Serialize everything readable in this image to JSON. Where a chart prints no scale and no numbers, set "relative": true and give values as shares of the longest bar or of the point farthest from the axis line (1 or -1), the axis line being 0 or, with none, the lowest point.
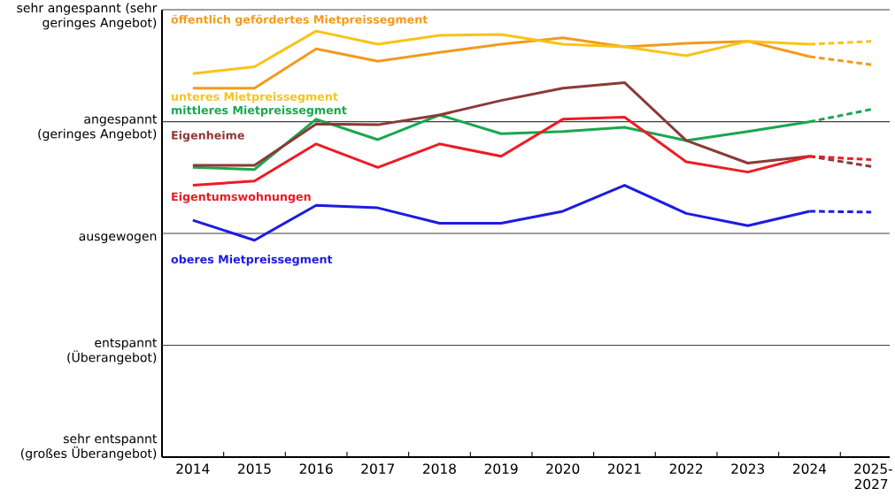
{
  "chart_data": {
    "type": "line",
    "relative": true,
    "categories": [
      "2014",
      "2015",
      "2016",
      "2017",
      "2018",
      "2019",
      "2020",
      "2021",
      "2022",
      "2023",
      "2024",
      "2025-2027"
    ],
    "annotations": [
      "sehr angespannt (sehr geringes Angebot)",
      "angespannt (geringes Angebot)",
      "ausgewogen",
      "entspannt (Überangebot)",
      "sehr entspannt (großes Überangebot)"
    ],
    "grid": "y",
    "legend": false,
    "marker": "none",
    "line_style": "solid",
    "series": [
      {
        "name": "öffentlich gefördertes Mietpreissegment",
        "color": "#f39a1e",
        "values": [
          0.866,
          0.866,
          0.958,
          0.929,
          0.95,
          0.969,
          0.984,
          0.963,
          0.971,
          0.976,
          0.94,
          null
        ]
      },
      {
        "name": "unteres Mietpreissegment",
        "color": "#f7c417",
        "values": [
          0.9,
          0.916,
          1,
          0.969,
          0.99,
          0.992,
          0.969,
          0.963,
          0.942,
          0.976,
          0.969,
          null
        ]
      },
      {
        "name": "mittleres Mietpreissegment",
        "color": "#1aa64e",
        "values": [
          0.68,
          0.675,
          0.793,
          0.745,
          0.803,
          0.759,
          0.764,
          0.774,
          0.743,
          0.764,
          0.787,
          null
        ]
      },
      {
        "name": "Eigenheime",
        "color": "#8b3a36",
        "values": [
          0.685,
          0.685,
          0.782,
          0.78,
          0.803,
          0.837,
          0.866,
          0.879,
          0.743,
          0.69,
          0.706,
          null
        ]
      },
      {
        "name": "Eigentumswohnungen",
        "color": "#ec1c24",
        "values": [
          0.638,
          0.648,
          0.735,
          0.68,
          0.735,
          0.706,
          0.793,
          0.798,
          0.693,
          0.669,
          0.706,
          null
        ]
      },
      {
        "name": "oberes Mietpreissegment",
        "color": "#1c1ce0",
        "values": [
          0.556,
          0.509,
          0.591,
          0.585,
          0.549,
          0.549,
          0.577,
          0.638,
          0.572,
          0.543,
          0.577,
          null
        ]
      },
      {
        "color": "#f39a1e",
        "line_style": "dashed",
        "values": [
          null,
          null,
          null,
          null,
          null,
          null,
          null,
          null,
          null,
          null,
          0.94,
          0.921
        ]
      },
      {
        "color": "#f7c417",
        "line_style": "dashed",
        "values": [
          null,
          null,
          null,
          null,
          null,
          null,
          null,
          null,
          null,
          null,
          0.969,
          0.976
        ]
      },
      {
        "color": "#1aa64e",
        "line_style": "dashed",
        "values": [
          null,
          null,
          null,
          null,
          null,
          null,
          null,
          null,
          null,
          null,
          0.787,
          0.816
        ]
      },
      {
        "color": "#8b3a36",
        "line_style": "dashed",
        "values": [
          null,
          null,
          null,
          null,
          null,
          null,
          null,
          null,
          null,
          null,
          0.706,
          0.682
        ]
      },
      {
        "color": "#ec1c24",
        "line_style": "dashed",
        "values": [
          null,
          null,
          null,
          null,
          null,
          null,
          null,
          null,
          null,
          null,
          0.706,
          0.698
        ]
      },
      {
        "color": "#1c1ce0",
        "line_style": "dashed",
        "values": [
          null,
          null,
          null,
          null,
          null,
          null,
          null,
          null,
          null,
          null,
          0.577,
          0.575
        ]
      }
    ]
  }
}
